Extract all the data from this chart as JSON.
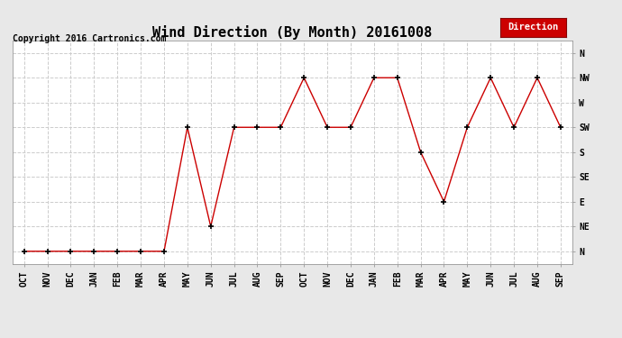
{
  "title": "Wind Direction (By Month) 20161008",
  "copyright": "Copyright 2016 Cartronics.com",
  "legend_label": "Direction",
  "legend_bg": "#cc0000",
  "legend_text_color": "#ffffff",
  "x_labels": [
    "OCT",
    "NOV",
    "DEC",
    "JAN",
    "FEB",
    "MAR",
    "APR",
    "MAY",
    "JUN",
    "JUL",
    "AUG",
    "SEP",
    "OCT",
    "NOV",
    "DEC",
    "JAN",
    "FEB",
    "MAR",
    "APR",
    "MAY",
    "JUN",
    "JUL",
    "AUG",
    "SEP"
  ],
  "y_labels": [
    "N",
    "NE",
    "E",
    "SE",
    "S",
    "SW",
    "W",
    "NW",
    "N"
  ],
  "y_values": [
    0,
    1,
    2,
    3,
    4,
    5,
    6,
    7,
    8
  ],
  "data_values": [
    0,
    0,
    0,
    0,
    0,
    0,
    0,
    5,
    1,
    5,
    5,
    5,
    7,
    5,
    5,
    7,
    7,
    4,
    2,
    5,
    7,
    5,
    7,
    5
  ],
  "line_color": "#cc0000",
  "marker_color": "#000000",
  "grid_color": "#cccccc",
  "bg_color": "#e8e8e8",
  "plot_bg_color": "#ffffff",
  "title_fontsize": 11,
  "axis_label_fontsize": 7,
  "copyright_fontsize": 7
}
